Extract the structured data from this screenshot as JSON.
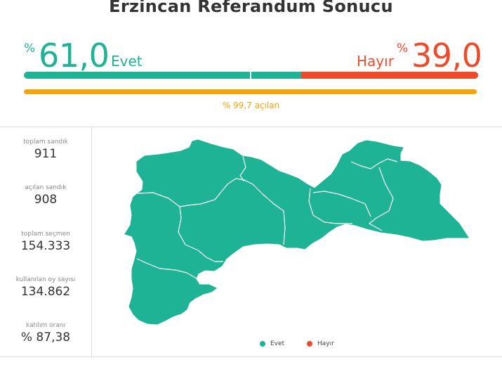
{
  "title": "Erzincan Referandum Sonucu",
  "yes": {
    "percent_sign": "%",
    "value": "61,0",
    "label": "Evet",
    "share": 61.0,
    "color": "#1db394"
  },
  "no": {
    "percent_sign": "%",
    "value": "39,0",
    "label": "Hayır",
    "share": 39.0,
    "color": "#ee4b2b"
  },
  "opened": {
    "text": "% 99,7 açılan",
    "percent": 99.7,
    "color": "#f5a40a"
  },
  "stats": [
    {
      "label": "toplam sandık",
      "value": "911"
    },
    {
      "label": "açılan sandık",
      "value": "908"
    },
    {
      "label": "toplam seçmen",
      "value": "154.333"
    },
    {
      "label": "kullanılan oy sayısı",
      "value": "134.862"
    },
    {
      "label": "katılım oranı",
      "value": "% 87,38"
    }
  ],
  "map": {
    "province": "Erzincan",
    "district_fill_color": "#1db394",
    "district_count": 9,
    "districts_won_by": "Evet"
  },
  "legend": [
    {
      "label": "Evet",
      "color": "#1db394"
    },
    {
      "label": "Hayır",
      "color": "#ee4b2b"
    }
  ]
}
